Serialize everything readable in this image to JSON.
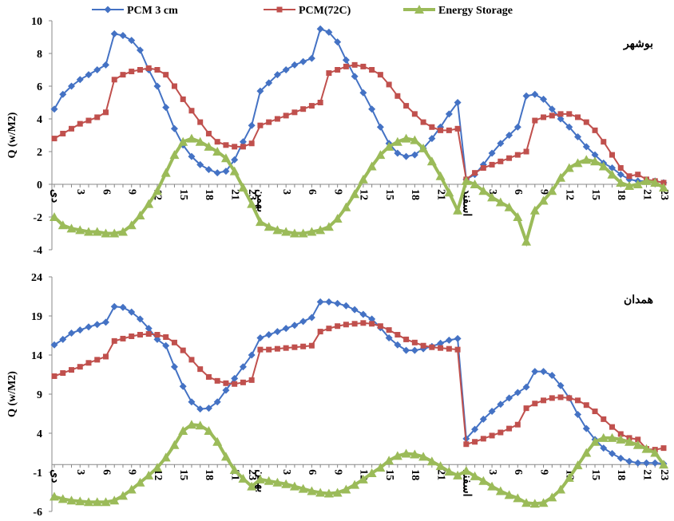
{
  "chart_data": [
    {
      "type": "line",
      "annotation": "بوشهر",
      "ylabel": "Q (w/M2)",
      "ylim": [
        -4,
        10
      ],
      "yticks": [
        -4,
        -2,
        0,
        2,
        4,
        6,
        8,
        10
      ],
      "categories": [
        "دی",
        null,
        null,
        "3",
        null,
        null,
        "6",
        null,
        null,
        "9",
        null,
        null,
        "12",
        null,
        null,
        "15",
        null,
        null,
        "18",
        null,
        null,
        "21",
        null,
        "23",
        "بهمن",
        null,
        null,
        "3",
        null,
        null,
        "6",
        null,
        null,
        "9",
        null,
        null,
        "12",
        null,
        null,
        "15",
        null,
        null,
        "18",
        null,
        null,
        "21",
        null,
        null,
        "اسفند",
        null,
        null,
        "3",
        null,
        null,
        "6",
        null,
        null,
        "9",
        null,
        null,
        "12",
        null,
        null,
        "15",
        null,
        null,
        "18",
        null,
        null,
        "21",
        null,
        "23"
      ],
      "series": [
        {
          "name": "PCM 3 cm",
          "color": "#4472c4",
          "marker": "diamond",
          "values": [
            4.6,
            5.5,
            6.0,
            6.4,
            6.7,
            7.0,
            7.3,
            9.2,
            9.1,
            8.8,
            8.2,
            7.0,
            6.0,
            4.7,
            3.4,
            2.4,
            1.7,
            1.2,
            0.9,
            0.7,
            0.8,
            1.5,
            2.6,
            3.6,
            5.7,
            6.2,
            6.7,
            7.0,
            7.3,
            7.5,
            7.7,
            9.5,
            9.3,
            8.7,
            7.6,
            6.6,
            5.6,
            4.6,
            3.5,
            2.5,
            1.9,
            1.7,
            1.8,
            2.2,
            2.8,
            3.5,
            4.3,
            5.0,
            0.3,
            0.6,
            1.2,
            1.9,
            2.5,
            3.0,
            3.5,
            5.4,
            5.5,
            5.2,
            4.6,
            4.0,
            3.5,
            2.9,
            2.3,
            1.8,
            1.3,
            1.0,
            0.6,
            0.3,
            0.2,
            0.2,
            0.2,
            0.1
          ]
        },
        {
          "name": "PCM(72C)",
          "color": "#c0504d",
          "marker": "square",
          "values": [
            2.8,
            3.1,
            3.4,
            3.7,
            3.9,
            4.1,
            4.4,
            6.4,
            6.7,
            6.9,
            7.0,
            7.1,
            7.0,
            6.7,
            6.0,
            5.2,
            4.5,
            3.8,
            3.1,
            2.6,
            2.4,
            2.3,
            2.3,
            2.5,
            3.6,
            3.8,
            4.0,
            4.2,
            4.4,
            4.6,
            4.8,
            5.0,
            6.8,
            7.0,
            7.2,
            7.3,
            7.2,
            7.0,
            6.7,
            6.1,
            5.4,
            4.8,
            4.3,
            3.8,
            3.5,
            3.3,
            3.3,
            3.4,
            0.3,
            0.7,
            1.0,
            1.2,
            1.4,
            1.6,
            1.8,
            2.0,
            3.9,
            4.1,
            4.2,
            4.3,
            4.3,
            4.1,
            3.8,
            3.3,
            2.6,
            1.8,
            1.0,
            0.5,
            0.6,
            0.3,
            0.2,
            0.1
          ]
        },
        {
          "name": "Energy Storage",
          "color": "#9bbb59",
          "marker": "triangle",
          "values": [
            -2.0,
            -2.5,
            -2.7,
            -2.8,
            -2.9,
            -2.9,
            -3.0,
            -3.0,
            -2.9,
            -2.5,
            -1.9,
            -1.2,
            -0.4,
            0.7,
            1.8,
            2.6,
            2.8,
            2.6,
            2.3,
            2.0,
            1.6,
            0.8,
            -0.2,
            -1.2,
            -2.3,
            -2.6,
            -2.8,
            -2.9,
            -3.0,
            -3.0,
            -2.9,
            -2.8,
            -2.6,
            -2.1,
            -1.4,
            -0.6,
            0.3,
            1.1,
            1.8,
            2.3,
            2.6,
            2.8,
            2.7,
            2.2,
            1.4,
            0.5,
            -0.5,
            -1.6,
            0.2,
            0.0,
            -0.4,
            -0.8,
            -1.1,
            -1.4,
            -2.0,
            -3.5,
            -1.6,
            -1.0,
            -0.4,
            0.4,
            1.0,
            1.3,
            1.5,
            1.4,
            1.1,
            0.6,
            0.1,
            -0.1,
            0.0,
            0.2,
            0.1,
            -0.2
          ]
        }
      ]
    },
    {
      "type": "line",
      "annotation": "همدان",
      "ylabel": "Q (w/M2)",
      "ylim": [
        -6,
        24
      ],
      "yticks": [
        -6,
        -1,
        4,
        9,
        14,
        19,
        24
      ],
      "categories": [
        "دی",
        null,
        null,
        "3",
        null,
        null,
        "6",
        null,
        null,
        "9",
        null,
        null,
        "12",
        null,
        null,
        "15",
        null,
        null,
        "18",
        null,
        null,
        "21",
        null,
        "23",
        "بهمن",
        null,
        null,
        "3",
        null,
        null,
        "6",
        null,
        null,
        "9",
        null,
        null,
        "12",
        null,
        null,
        "15",
        null,
        null,
        "18",
        null,
        null,
        "21",
        null,
        null,
        "اسفند",
        null,
        null,
        "3",
        null,
        null,
        "6",
        null,
        null,
        "9",
        null,
        null,
        "12",
        null,
        null,
        "15",
        null,
        null,
        "18",
        null,
        null,
        "21",
        null,
        "23"
      ],
      "series": [
        {
          "color": "#4472c4",
          "marker": "diamond",
          "values": [
            15.3,
            16.0,
            16.8,
            17.2,
            17.6,
            17.9,
            18.2,
            20.2,
            20.1,
            19.5,
            18.6,
            17.4,
            16.0,
            15.2,
            12.5,
            10.0,
            8.0,
            7.1,
            7.2,
            8.0,
            9.5,
            11.0,
            12.5,
            14.0,
            16.2,
            16.6,
            17.0,
            17.4,
            17.8,
            18.3,
            18.8,
            20.8,
            20.8,
            20.6,
            20.3,
            19.8,
            19.2,
            18.6,
            17.5,
            16.2,
            15.3,
            14.6,
            14.6,
            14.8,
            15.1,
            15.5,
            15.9,
            16.1,
            3.3,
            4.5,
            5.8,
            6.8,
            7.7,
            8.5,
            9.2,
            9.9,
            11.9,
            11.9,
            11.4,
            10.1,
            8.5,
            6.4,
            4.6,
            3.2,
            2.1,
            1.4,
            0.8,
            0.4,
            0.2,
            0.2,
            0.2,
            0.1
          ]
        },
        {
          "color": "#c0504d",
          "marker": "square",
          "values": [
            11.3,
            11.7,
            12.1,
            12.5,
            13.0,
            13.4,
            13.8,
            15.8,
            16.1,
            16.4,
            16.6,
            16.7,
            16.6,
            16.3,
            15.6,
            14.6,
            13.4,
            12.2,
            11.2,
            10.7,
            10.4,
            10.3,
            10.5,
            10.8,
            14.7,
            14.7,
            14.8,
            14.9,
            15.0,
            15.1,
            15.2,
            17.0,
            17.4,
            17.7,
            17.9,
            18.0,
            18.1,
            18.0,
            17.7,
            17.2,
            16.6,
            16.0,
            15.6,
            15.2,
            15.0,
            14.9,
            14.8,
            14.7,
            2.6,
            2.9,
            3.3,
            3.7,
            4.1,
            4.6,
            5.1,
            7.2,
            7.8,
            8.2,
            8.5,
            8.6,
            8.5,
            8.2,
            7.6,
            6.8,
            5.8,
            4.8,
            3.9,
            3.4,
            3.2,
            2.0,
            1.9,
            2.1
          ]
        },
        {
          "color": "#9bbb59",
          "marker": "triangle",
          "values": [
            -4.1,
            -4.4,
            -4.6,
            -4.7,
            -4.8,
            -4.8,
            -4.8,
            -4.6,
            -4.0,
            -3.2,
            -2.3,
            -1.4,
            -0.4,
            0.9,
            2.5,
            4.3,
            5.1,
            5.0,
            4.3,
            2.9,
            1.0,
            -0.7,
            -1.8,
            -2.8,
            -1.9,
            -2.1,
            -2.3,
            -2.5,
            -2.8,
            -3.1,
            -3.4,
            -3.6,
            -3.7,
            -3.6,
            -3.2,
            -2.6,
            -1.9,
            -1.1,
            -0.4,
            0.5,
            1.1,
            1.4,
            1.3,
            1.0,
            0.4,
            -0.2,
            -0.9,
            -1.4,
            -0.8,
            -1.5,
            -2.1,
            -2.8,
            -3.4,
            -3.9,
            -4.3,
            -4.9,
            -5.0,
            -4.9,
            -4.2,
            -3.2,
            -1.7,
            -0.1,
            1.5,
            2.9,
            3.4,
            3.4,
            3.2,
            2.9,
            2.5,
            2.0,
            1.5,
            0.0
          ]
        }
      ]
    }
  ]
}
